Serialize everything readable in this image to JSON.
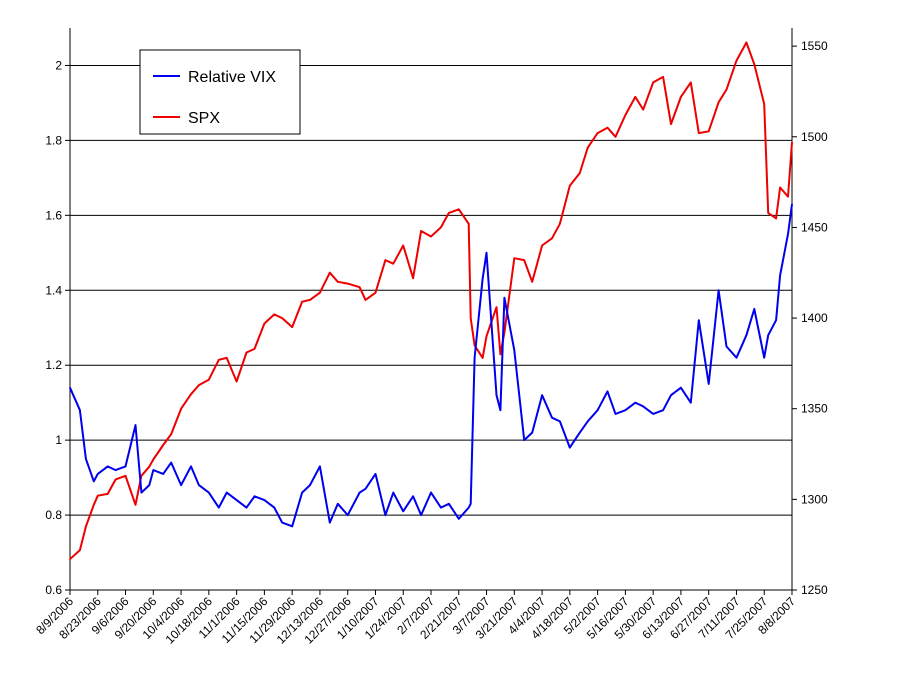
{
  "chart_data": {
    "type": "line",
    "title": "",
    "xlabel": "",
    "ylabel_left": "",
    "ylabel_right": "",
    "y_left_lim": [
      0.6,
      2.1
    ],
    "y_left_ticks": [
      "0.6",
      "0.8",
      "1",
      "1.2",
      "1.4",
      "1.6",
      "1.8",
      "2"
    ],
    "y_right_lim": [
      1250,
      1560
    ],
    "y_right_ticks": [
      "1250",
      "1300",
      "1350",
      "1400",
      "1450",
      "1500",
      "1550"
    ],
    "x_tick_labels": [
      "8/9/2006",
      "8/23/2006",
      "9/6/2006",
      "9/20/2006",
      "10/4/2006",
      "10/18/2006",
      "11/1/2006",
      "11/15/2006",
      "11/29/2006",
      "12/13/2006",
      "12/27/2006",
      "1/10/2007",
      "1/24/2007",
      "2/7/2007",
      "2/21/2007",
      "3/7/2007",
      "3/21/2007",
      "4/4/2007",
      "4/18/2007",
      "5/2/2007",
      "5/16/2007",
      "5/30/2007",
      "6/13/2007",
      "6/27/2007",
      "7/11/2007",
      "7/25/2007",
      "8/8/2007"
    ],
    "grid": "horizontal",
    "legend_position": "top-left",
    "series": [
      {
        "name": "Relative VIX",
        "axis": "left",
        "color": "#0000ee",
        "x": [
          "8/9/2006",
          "8/14/2006",
          "8/17/2006",
          "8/21/2006",
          "8/23/2006",
          "8/28/2006",
          "9/1/2006",
          "9/6/2006",
          "9/11/2006",
          "9/14/2006",
          "9/18/2006",
          "9/20/2006",
          "9/25/2006",
          "9/29/2006",
          "10/4/2006",
          "10/9/2006",
          "10/13/2006",
          "10/18/2006",
          "10/23/2006",
          "10/27/2006",
          "11/1/2006",
          "11/6/2006",
          "11/10/2006",
          "11/15/2006",
          "11/20/2006",
          "11/24/2006",
          "11/29/2006",
          "12/4/2006",
          "12/8/2006",
          "12/13/2006",
          "12/18/2006",
          "12/22/2006",
          "12/27/2006",
          "1/2/2007",
          "1/5/2007",
          "1/10/2007",
          "1/15/2007",
          "1/19/2007",
          "1/24/2007",
          "1/29/2007",
          "2/2/2007",
          "2/7/2007",
          "2/12/2007",
          "2/16/2007",
          "2/21/2007",
          "2/26/2007",
          "2/27/2007",
          "3/1/2007",
          "3/5/2007",
          "3/7/2007",
          "3/12/2007",
          "3/14/2007",
          "3/16/2007",
          "3/21/2007",
          "3/26/2007",
          "3/30/2007",
          "4/4/2007",
          "4/9/2007",
          "4/13/2007",
          "4/18/2007",
          "4/23/2007",
          "4/27/2007",
          "5/2/2007",
          "5/7/2007",
          "5/11/2007",
          "5/16/2007",
          "5/21/2007",
          "5/25/2007",
          "5/30/2007",
          "6/4/2007",
          "6/8/2007",
          "6/13/2007",
          "6/18/2007",
          "6/22/2007",
          "6/27/2007",
          "7/2/2007",
          "7/6/2007",
          "7/11/2007",
          "7/16/2007",
          "7/20/2007",
          "7/25/2007",
          "7/27/2007",
          "7/31/2007",
          "8/2/2007",
          "8/6/2007",
          "8/8/2007"
        ],
        "values": [
          1.14,
          1.08,
          0.95,
          0.89,
          0.91,
          0.93,
          0.92,
          0.93,
          1.04,
          0.86,
          0.88,
          0.92,
          0.91,
          0.94,
          0.88,
          0.93,
          0.88,
          0.86,
          0.82,
          0.86,
          0.84,
          0.82,
          0.85,
          0.84,
          0.82,
          0.78,
          0.77,
          0.86,
          0.88,
          0.93,
          0.78,
          0.83,
          0.8,
          0.86,
          0.87,
          0.91,
          0.8,
          0.86,
          0.81,
          0.85,
          0.8,
          0.86,
          0.82,
          0.83,
          0.79,
          0.82,
          0.83,
          1.22,
          1.43,
          1.5,
          1.12,
          1.08,
          1.38,
          1.24,
          1.0,
          1.02,
          1.12,
          1.06,
          1.05,
          0.98,
          1.02,
          1.05,
          1.08,
          1.13,
          1.07,
          1.08,
          1.1,
          1.09,
          1.07,
          1.08,
          1.12,
          1.14,
          1.1,
          1.32,
          1.15,
          1.4,
          1.25,
          1.22,
          1.28,
          1.35,
          1.22,
          1.28,
          1.32,
          1.44,
          1.55,
          1.63
        ]
      },
      {
        "name": "SPX",
        "axis": "right",
        "color": "#ee0000",
        "x": [
          "8/9/2006",
          "8/14/2006",
          "8/17/2006",
          "8/21/2006",
          "8/23/2006",
          "8/28/2006",
          "9/1/2006",
          "9/6/2006",
          "9/11/2006",
          "9/14/2006",
          "9/18/2006",
          "9/20/2006",
          "9/25/2006",
          "9/29/2006",
          "10/4/2006",
          "10/9/2006",
          "10/13/2006",
          "10/18/2006",
          "10/23/2006",
          "10/27/2006",
          "11/1/2006",
          "11/6/2006",
          "11/10/2006",
          "11/15/2006",
          "11/20/2006",
          "11/24/2006",
          "11/29/2006",
          "12/4/2006",
          "12/8/2006",
          "12/13/2006",
          "12/18/2006",
          "12/22/2006",
          "12/27/2006",
          "1/2/2007",
          "1/5/2007",
          "1/10/2007",
          "1/15/2007",
          "1/19/2007",
          "1/24/2007",
          "1/29/2007",
          "2/2/2007",
          "2/7/2007",
          "2/12/2007",
          "2/16/2007",
          "2/21/2007",
          "2/26/2007",
          "2/27/2007",
          "3/1/2007",
          "3/5/2007",
          "3/7/2007",
          "3/12/2007",
          "3/14/2007",
          "3/16/2007",
          "3/21/2007",
          "3/26/2007",
          "3/30/2007",
          "4/4/2007",
          "4/9/2007",
          "4/13/2007",
          "4/18/2007",
          "4/23/2007",
          "4/27/2007",
          "5/2/2007",
          "5/7/2007",
          "5/11/2007",
          "5/16/2007",
          "5/21/2007",
          "5/25/2007",
          "5/30/2007",
          "6/4/2007",
          "6/8/2007",
          "6/13/2007",
          "6/18/2007",
          "6/22/2007",
          "6/27/2007",
          "7/2/2007",
          "7/6/2007",
          "7/11/2007",
          "7/16/2007",
          "7/20/2007",
          "7/25/2007",
          "7/27/2007",
          "7/31/2007",
          "8/2/2007",
          "8/6/2007",
          "8/8/2007"
        ],
        "values": [
          1267,
          1272,
          1285,
          1297,
          1302,
          1303,
          1311,
          1313,
          1297,
          1313,
          1318,
          1322,
          1330,
          1336,
          1350,
          1358,
          1363,
          1366,
          1377,
          1378,
          1365,
          1381,
          1383,
          1397,
          1402,
          1400,
          1395,
          1409,
          1410,
          1414,
          1425,
          1420,
          1419,
          1417,
          1410,
          1414,
          1432,
          1430,
          1440,
          1422,
          1448,
          1445,
          1450,
          1458,
          1460,
          1452,
          1400,
          1385,
          1378,
          1390,
          1406,
          1380,
          1392,
          1433,
          1432,
          1420,
          1440,
          1444,
          1452,
          1473,
          1480,
          1494,
          1502,
          1505,
          1500,
          1512,
          1522,
          1515,
          1530,
          1533,
          1507,
          1522,
          1530,
          1502,
          1503,
          1519,
          1526,
          1542,
          1552,
          1540,
          1518,
          1458,
          1455,
          1472,
          1467,
          1497
        ]
      }
    ]
  }
}
